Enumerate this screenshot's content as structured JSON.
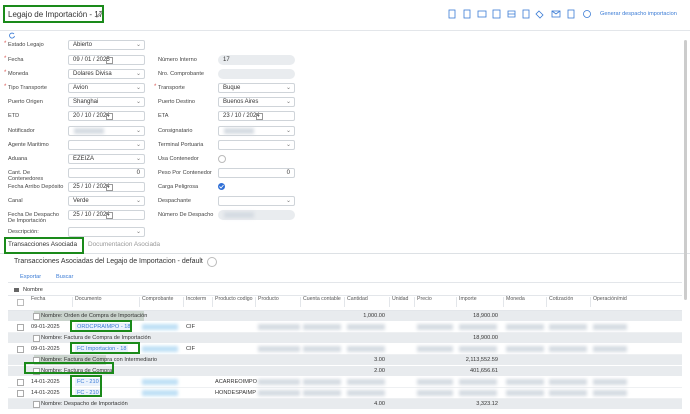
{
  "header": {
    "title": "Legajo de Importación - 17",
    "action": "Generar despacho importacion"
  },
  "form": {
    "left": [
      {
        "label": "Estado Legajo",
        "value": "Abierto",
        "kind": "select",
        "required": true
      },
      {
        "label": "Fecha",
        "value": "09 / 01 / 2025",
        "kind": "date",
        "required": true
      },
      {
        "label": "Moneda",
        "value": "Dolares Divisa",
        "kind": "select",
        "required": true
      },
      {
        "label": "Tipo Transporte",
        "value": "Avion",
        "kind": "select",
        "required": true
      },
      {
        "label": "Puerto Origen",
        "value": "Shanghai",
        "kind": "select"
      },
      {
        "label": "ETD",
        "value": "20 / 10 / 2024",
        "kind": "date"
      },
      {
        "label": "Notificador",
        "kind": "select",
        "blurred": true
      },
      {
        "label": "Agente Maritimo",
        "kind": "select"
      },
      {
        "label": "Aduana",
        "value": "EZEIZA",
        "kind": "select"
      },
      {
        "label": "Cant. De Contenedores",
        "value": "0",
        "kind": "number"
      },
      {
        "label": "Fecha Arribo Depósito",
        "value": "25 / 10 / 2024",
        "kind": "date"
      },
      {
        "label": "Canal",
        "value": "Verde",
        "kind": "select"
      },
      {
        "label": "Fecha De Despacho De Importación",
        "value": "25 / 10 / 2024",
        "kind": "date"
      },
      {
        "label": "Descripción:",
        "kind": "select"
      }
    ],
    "right": [
      {
        "label": "Número Interno",
        "value": "17",
        "kind": "readonly"
      },
      {
        "label": "Nro. Comprobante",
        "kind": "readonly"
      },
      {
        "label": "Transporte",
        "value": "Buque",
        "kind": "select",
        "required": true
      },
      {
        "label": "Puerto Destino",
        "value": "Buenos Aires",
        "kind": "select"
      },
      {
        "label": "ETA",
        "value": "23 / 10 / 2024",
        "kind": "date"
      },
      {
        "label": "Consignatario",
        "kind": "select",
        "blurred": true
      },
      {
        "label": "Terminal Portuaria",
        "kind": "select"
      },
      {
        "label": "Usa Contenedor",
        "kind": "radio"
      },
      {
        "label": "Peso Por Contenedor",
        "value": "0",
        "kind": "number"
      },
      {
        "label": "Carga Peligrosa",
        "kind": "check"
      },
      {
        "label": "Despachante",
        "kind": "select"
      },
      {
        "label": "Número De Despacho",
        "kind": "readonly",
        "blurred": true
      }
    ]
  },
  "tabs": [
    "Transacciones Asociada",
    "Documentacion Asociada"
  ],
  "section": {
    "title": "Transacciones Asociadas del Legajo de Importacion - default",
    "toolbar": [
      "Exportar",
      "Buscar"
    ],
    "group_by": "Nombre"
  },
  "table": {
    "columns": [
      "Fecha",
      "Documento",
      "Comprobante",
      "Incoterm",
      "Producto codigo",
      "Producto",
      "Cuenta contable",
      "Cantidad",
      "Unidad",
      "Precio",
      "Importe",
      "Moneda",
      "Cotización",
      "Operación/mid"
    ],
    "rows": [
      {
        "group": "Nombre: Orden de Compra de Importación",
        "cantidad": "1,000.00",
        "importe": "18,900.00"
      },
      {
        "fecha": "09-01-2025",
        "documento": "ORDCPRAIMPO - 18",
        "incoterm": "CIF"
      },
      {
        "group": "Nombre: Factura de Compra de Importación",
        "importe": "18,900.00"
      },
      {
        "fecha": "09-01-2025",
        "documento": "FC Importacion - 18",
        "incoterm": "CIF"
      },
      {
        "group": "Nombre: Factura de Compra con Intermediario",
        "cantidad": "3.00",
        "importe": "2,113,552.59"
      },
      {
        "group": "Nombre: Factura de Compra",
        "cantidad": "2.00",
        "importe": "401,656.61"
      },
      {
        "fecha": "14-01-2025",
        "documento": "FC - 210",
        "producto_codigo": "ACARREOIMPO"
      },
      {
        "fecha": "14-01-2025",
        "documento": "FC - 210",
        "producto_codigo": "HONDESPAIMP"
      },
      {
        "group": "Nombre: Despacho de Importación",
        "cantidad": "4.00",
        "importe": "3,323.12"
      }
    ]
  }
}
